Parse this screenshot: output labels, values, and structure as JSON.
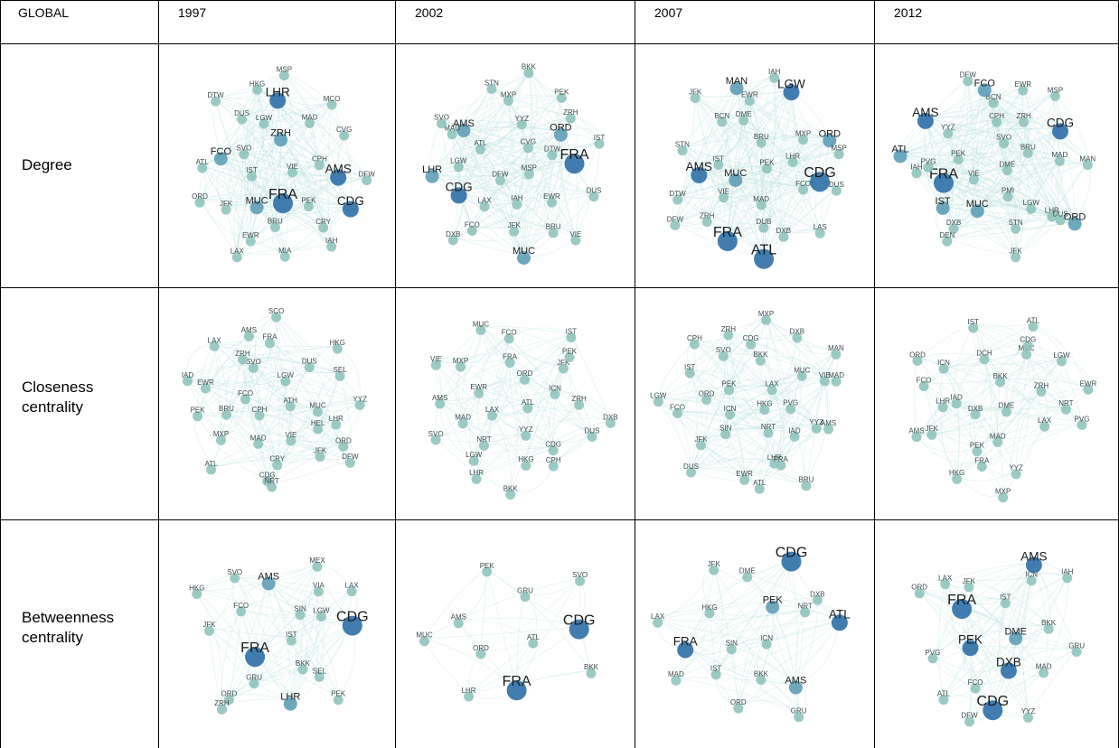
{
  "table": {
    "corner": "GLOBAL",
    "years": [
      "1997",
      "2002",
      "2007",
      "2012"
    ],
    "rows": [
      {
        "label": "Degree",
        "panels": [
          [
            "VIE",
            "IST",
            "ZRH",
            "FRA",
            "SVO",
            "CPH",
            "MUC",
            "LGW",
            "PEK",
            "FCO",
            "MAD",
            "BRU",
            "DUS",
            "AMS",
            "JFK",
            "LHR",
            "CRY",
            "ATL",
            "CVG",
            "EWR",
            "HKG",
            "CDG",
            "ORD",
            "MCO",
            "MIA",
            "DTW",
            "DFW",
            "LAX",
            "MSP",
            "IAH"
          ],
          [
            "MSP",
            "DFW",
            "CVG",
            "IAH",
            "ATL",
            "DTW",
            "LAX",
            "YYZ",
            "EWR",
            "LGW",
            "ORD",
            "JFK",
            "AMS",
            "FRA",
            "CDG",
            "MXP",
            "BRU",
            "MAD",
            "ZRH",
            "FCO",
            "STN",
            "DUS",
            "LHR",
            "PEK",
            "MUC",
            "SVO",
            "IST",
            "DXB",
            "BKK",
            "VIE"
          ],
          [
            "PEK",
            "MUC",
            "BRU",
            "MAD",
            "IST",
            "LHR",
            "VIE",
            "DME",
            "FCO",
            "AMS",
            "MXP",
            "DUB",
            "BCN",
            "CDG",
            "ZRH",
            "EWR",
            "DXB",
            "STN",
            "ORD",
            "FRA",
            "MAN",
            "DUS",
            "DTW",
            "LGW",
            "ATL",
            "JFK",
            "MSP",
            "DFW",
            "IAH",
            "LAS"
          ],
          [
            "DME",
            "VIE",
            "SVO",
            "PMI",
            "PEK",
            "BRU",
            "MUC",
            "CPH",
            "LGW",
            "FRA",
            "ZRH",
            "STN",
            "YYZ",
            "MAD",
            "IST",
            "BCN",
            "LHR",
            "PVG",
            "CDG",
            "DXB",
            "FCO",
            "DUS",
            "IAH",
            "EWR",
            "JFK",
            "AMS",
            "MAN",
            "DEN",
            "DFW",
            "ORD",
            "ATL",
            "MSP"
          ]
        ]
      },
      {
        "label": "Closeness centrality",
        "panels": [
          [
            "ATH",
            "CPH",
            "LGW",
            "VIE",
            "FCO",
            "MUC",
            "MAD",
            "SVO",
            "HEL",
            "BRU",
            "DUS",
            "CRY",
            "ZRH",
            "LHR",
            "MXP",
            "FRA",
            "JFK",
            "EWR",
            "SEL",
            "CDG",
            "AMS",
            "ORD",
            "PEK",
            "HKG",
            "NRT",
            "LAX",
            "YYZ",
            "ATL",
            "SCO",
            "DFW",
            "IAD"
          ],
          [
            "ATL",
            "LAX",
            "ORD",
            "YYZ",
            "EWR",
            "ICN",
            "NRT",
            "FRA",
            "CDG",
            "MAD",
            "JFK",
            "HKG",
            "MXP",
            "ZRH",
            "LGW",
            "FCO",
            "CPH",
            "AMS",
            "PEK",
            "LHR",
            "MUC",
            "DUS",
            "SVO",
            "IST",
            "BKK",
            "VIE",
            "DXB"
          ],
          [
            "HKG",
            "ICN",
            "LAX",
            "NRT",
            "PEK",
            "PVG",
            "SIN",
            "BKK",
            "IAD",
            "ORD",
            "MUC",
            "LHR",
            "SVO",
            "YYZ",
            "JFK",
            "CDG",
            "FRA",
            "IST",
            "VIE",
            "EWR",
            "ZRH",
            "AMS",
            "FCO",
            "DXB",
            "ATL",
            "CPH",
            "MAD",
            "DUS",
            "MXP",
            "BRU",
            "LGW",
            "MAN"
          ],
          [
            "DME",
            "DXB",
            "BKK",
            "MAD",
            "IAD",
            "ZRH",
            "PEK",
            "DCH",
            "LAX",
            "LHR",
            "MUC",
            "FRA",
            "ICN",
            "NRT",
            "JFK",
            "CDG",
            "YYZ",
            "FCO",
            "LGW",
            "HKG",
            "IST",
            "PVG",
            "AMS",
            "ATL",
            "MXP",
            "ORD",
            "EWR"
          ]
        ]
      },
      {
        "label": "Betweenness centrality",
        "panels": [
          [
            "IST",
            "FRA",
            "SIN",
            "BKK",
            "FCO",
            "LGW",
            "GRU",
            "AMS",
            "SEL",
            "JFK",
            "VIA",
            "LHR",
            "SVO",
            "CDG",
            "ORD",
            "MEX",
            "PEK",
            "HKG",
            "LAX",
            "ZRH"
          ],
          [
            "ATL",
            "ORD",
            "GRU",
            "FRA",
            "AMS",
            "CDG",
            "LHR",
            "PEK",
            "BKK",
            "MUC",
            "SVO"
          ],
          [
            "ICN",
            "SIN",
            "PEK",
            "BKK",
            "HKG",
            "NRT",
            "IST",
            "DME",
            "AMS",
            "FRA",
            "DXB",
            "ORD",
            "JFK",
            "ATL",
            "MAD",
            "CDG",
            "GRU",
            "LAX"
          ],
          [
            "DME",
            "PEK",
            "IST",
            "DXB",
            "FRA",
            "BKK",
            "FCO",
            "JFK",
            "MAD",
            "PVG",
            "ICN",
            "CDG",
            "LAX",
            "GRU",
            "ATL",
            "AMS",
            "YYZ",
            "ORD",
            "IAH",
            "DFW"
          ]
        ]
      }
    ]
  },
  "colors": {
    "edge": "#c3e6e2",
    "node": "#8fc4bd",
    "hub": "#2e6fa7",
    "label": "#1a1a1a"
  }
}
